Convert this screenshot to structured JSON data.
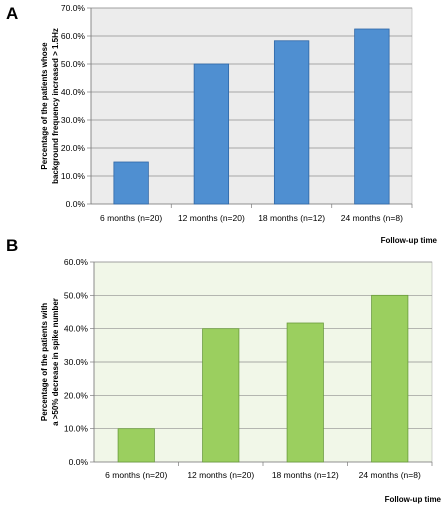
{
  "chart_data": [
    {
      "panel": "A",
      "type": "bar",
      "categories": [
        "6 months (n=20)",
        "12 months (n=20)",
        "18 months (n=12)",
        "24 months (n=8)"
      ],
      "values": [
        15.0,
        50.0,
        58.3,
        62.5
      ],
      "ylabel_lines": [
        "Percentage of the patients whose",
        "background frequency increased > 1.5Hz"
      ],
      "xlabel": "Follow-up time",
      "ylim": [
        0,
        70
      ],
      "yticks": [
        "0.0%",
        "10.0%",
        "20.0%",
        "30.0%",
        "40.0%",
        "50.0%",
        "60.0%",
        "70.0%"
      ],
      "grid": true,
      "plot_bg": "#ececec",
      "bar_color": "#4f8fd1",
      "bar_stroke": "#2f67a6"
    },
    {
      "panel": "B",
      "type": "bar",
      "categories": [
        "6 months (n=20)",
        "12 months (n=20)",
        "18 months (n=12)",
        "24 months (n=8)"
      ],
      "values": [
        10.0,
        40.0,
        41.7,
        50.0
      ],
      "ylabel_lines": [
        "Percentage of the patients with",
        "a >50% decrease in spike number"
      ],
      "xlabel": "Follow-up time",
      "ylim": [
        0,
        60
      ],
      "yticks": [
        "0.0%",
        "10.0%",
        "20.0%",
        "30.0%",
        "40.0%",
        "50.0%",
        "60.0%"
      ],
      "grid": true,
      "plot_bg": "#f1f7e8",
      "bar_color": "#9bcf5f",
      "bar_stroke": "#6a9a3c"
    }
  ]
}
